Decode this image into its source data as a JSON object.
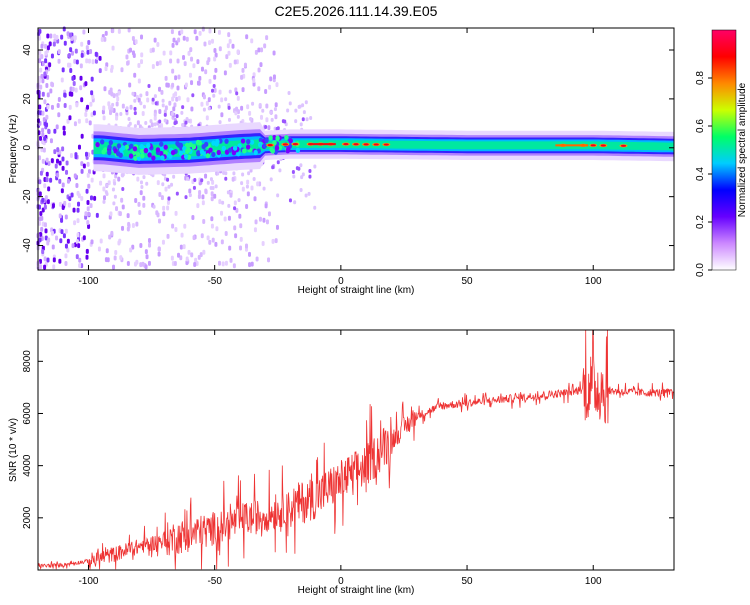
{
  "title": "C2E5.2026.111.14.39.E05",
  "chart_data": [
    {
      "type": "heatmap",
      "name": "spectrogram",
      "xlabel": "Height of straight line (km)",
      "ylabel": "Frequency (Hz)",
      "xlim": [
        -120,
        132
      ],
      "ylim": [
        -50,
        49
      ],
      "x_ticks": [
        -100,
        -50,
        0,
        50,
        100
      ],
      "y_ticks": [
        -40,
        -20,
        0,
        20,
        40
      ],
      "colorbar": {
        "label": "Normalized spectral amplitude",
        "range": [
          0,
          1
        ],
        "ticks": [
          0.0,
          0.2,
          0.4,
          0.6,
          0.8
        ],
        "colormap": [
          "#ffffff",
          "#cc88ff",
          "#6600ff",
          "#0000ff",
          "#00ccff",
          "#00ff66",
          "#ccff00",
          "#ff8800",
          "#ff0000",
          "#ff0066"
        ]
      },
      "band": {
        "center_hz": [
          {
            "x": -120,
            "f": 0
          },
          {
            "x": -95,
            "f": 0
          },
          {
            "x": -80,
            "f": -1.5
          },
          {
            "x": -60,
            "f": -1
          },
          {
            "x": -40,
            "f": 0.5
          },
          {
            "x": -20,
            "f": 1.5
          },
          {
            "x": 0,
            "f": 1.5
          },
          {
            "x": 50,
            "f": 1
          },
          {
            "x": 100,
            "f": 1
          },
          {
            "x": 132,
            "f": 0.5
          }
        ],
        "hot_spots_km": [
          -28,
          -22,
          -18,
          -12,
          -8,
          -4,
          2,
          6,
          10,
          14,
          18,
          88,
          96,
          100,
          104,
          112
        ]
      }
    },
    {
      "type": "line",
      "name": "snr",
      "xlabel": "Height of straight line (km)",
      "ylabel": "SNR (10 * v/v)",
      "xlim": [
        -120,
        132
      ],
      "ylim": [
        0,
        9200
      ],
      "x_ticks": [
        -100,
        -50,
        0,
        50,
        100
      ],
      "y_ticks": [
        2000,
        4000,
        6000,
        8000
      ],
      "color": "#ee3333",
      "x": [
        -120,
        -110,
        -100,
        -90,
        -80,
        -70,
        -60,
        -50,
        -40,
        -30,
        -20,
        -10,
        0,
        10,
        20,
        30,
        40,
        50,
        60,
        70,
        80,
        90,
        95,
        100,
        102,
        104,
        110,
        120,
        132
      ],
      "y": [
        150,
        200,
        350,
        600,
        900,
        1150,
        1350,
        1600,
        1900,
        2100,
        2400,
        2800,
        3400,
        4000,
        5000,
        5900,
        6300,
        6400,
        6500,
        6600,
        6700,
        6800,
        6900,
        7100,
        7000,
        6900,
        6850,
        6800,
        6800
      ]
    }
  ]
}
